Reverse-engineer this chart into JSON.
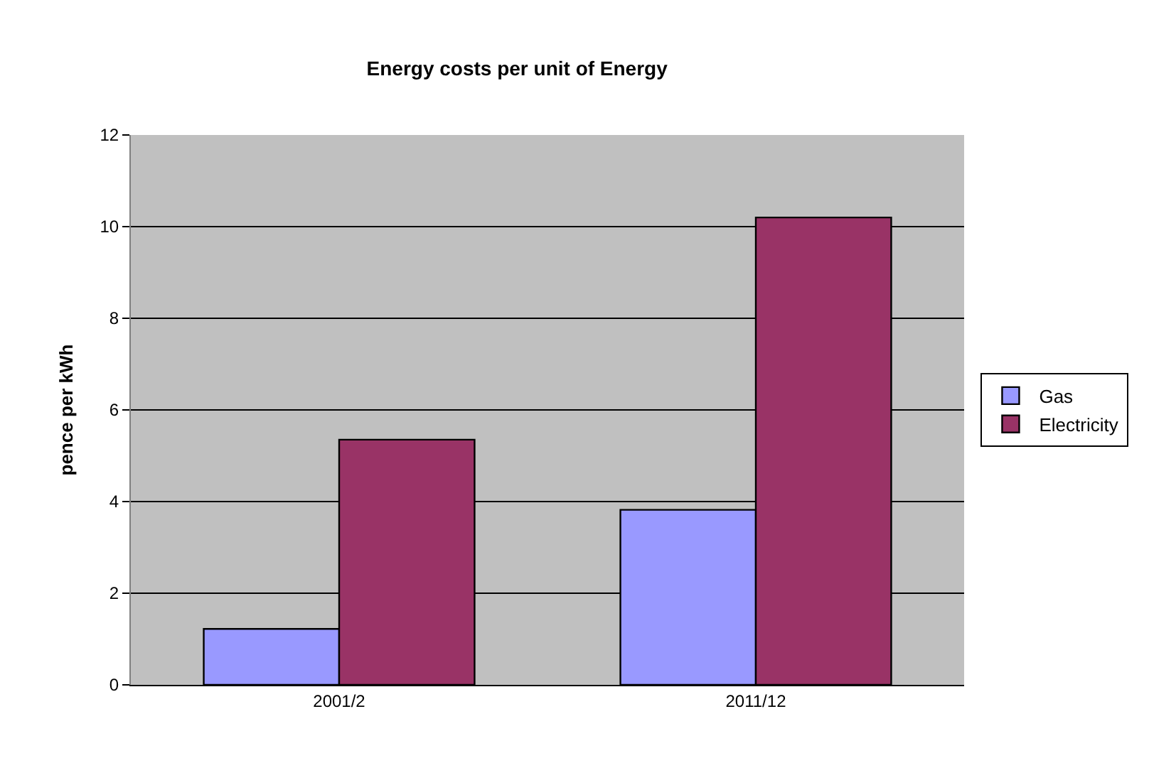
{
  "chart_data": {
    "type": "bar",
    "title": "Energy costs per unit of Energy",
    "ylabel": "pence per kWh",
    "categories": [
      "2001/2",
      "2011/12"
    ],
    "series": [
      {
        "name": "Gas",
        "color": "#9999ff",
        "values": [
          1.22,
          3.82
        ]
      },
      {
        "name": "Electricity",
        "color": "#993366",
        "values": [
          5.35,
          10.2
        ]
      }
    ],
    "ylim": [
      0,
      12
    ],
    "yticks": [
      0,
      2,
      4,
      6,
      8,
      10,
      12
    ],
    "grid": "y",
    "legend": "right"
  }
}
